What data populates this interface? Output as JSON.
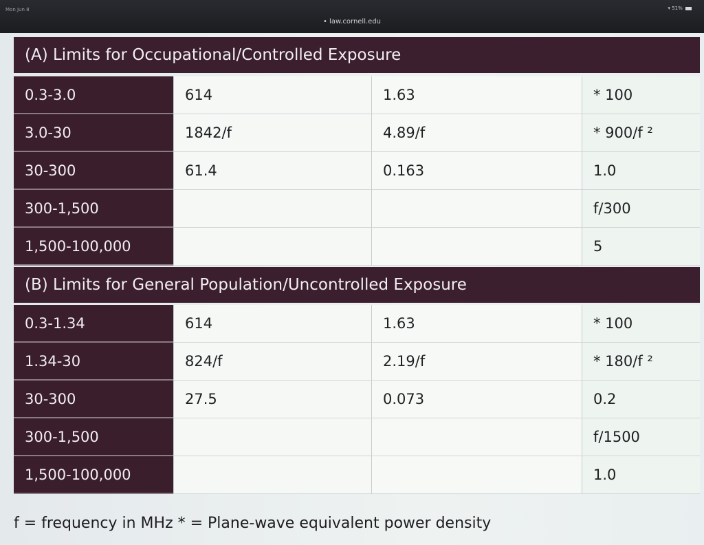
{
  "statusbar": {
    "time": "Mon Jun 8",
    "url": "• law.cornell.edu",
    "battery": "51%"
  },
  "sections": [
    {
      "title": "(A) Limits for Occupational/Controlled Exposure",
      "rows": [
        [
          "0.3-3.0",
          "614",
          "1.63",
          "* 100"
        ],
        [
          "3.0-30",
          "1842/f",
          "4.89/f",
          "* 900/f ²"
        ],
        [
          "30-300",
          "61.4",
          "0.163",
          "1.0"
        ],
        [
          "300-1,500",
          "",
          "",
          "f/300"
        ],
        [
          "1,500-100,000",
          "",
          "",
          "5"
        ]
      ]
    },
    {
      "title": "(B) Limits for General Population/Uncontrolled Exposure",
      "rows": [
        [
          "0.3-1.34",
          "614",
          "1.63",
          "* 100"
        ],
        [
          "1.34-30",
          "824/f",
          "2.19/f",
          "* 180/f ²"
        ],
        [
          "30-300",
          "27.5",
          "0.073",
          "0.2"
        ],
        [
          "300-1,500",
          "",
          "",
          "f/1500"
        ],
        [
          "1,500-100,000",
          "",
          "",
          "1.0"
        ]
      ]
    }
  ],
  "footnote": "f = frequency in MHz * = Plane-wave equivalent power density"
}
